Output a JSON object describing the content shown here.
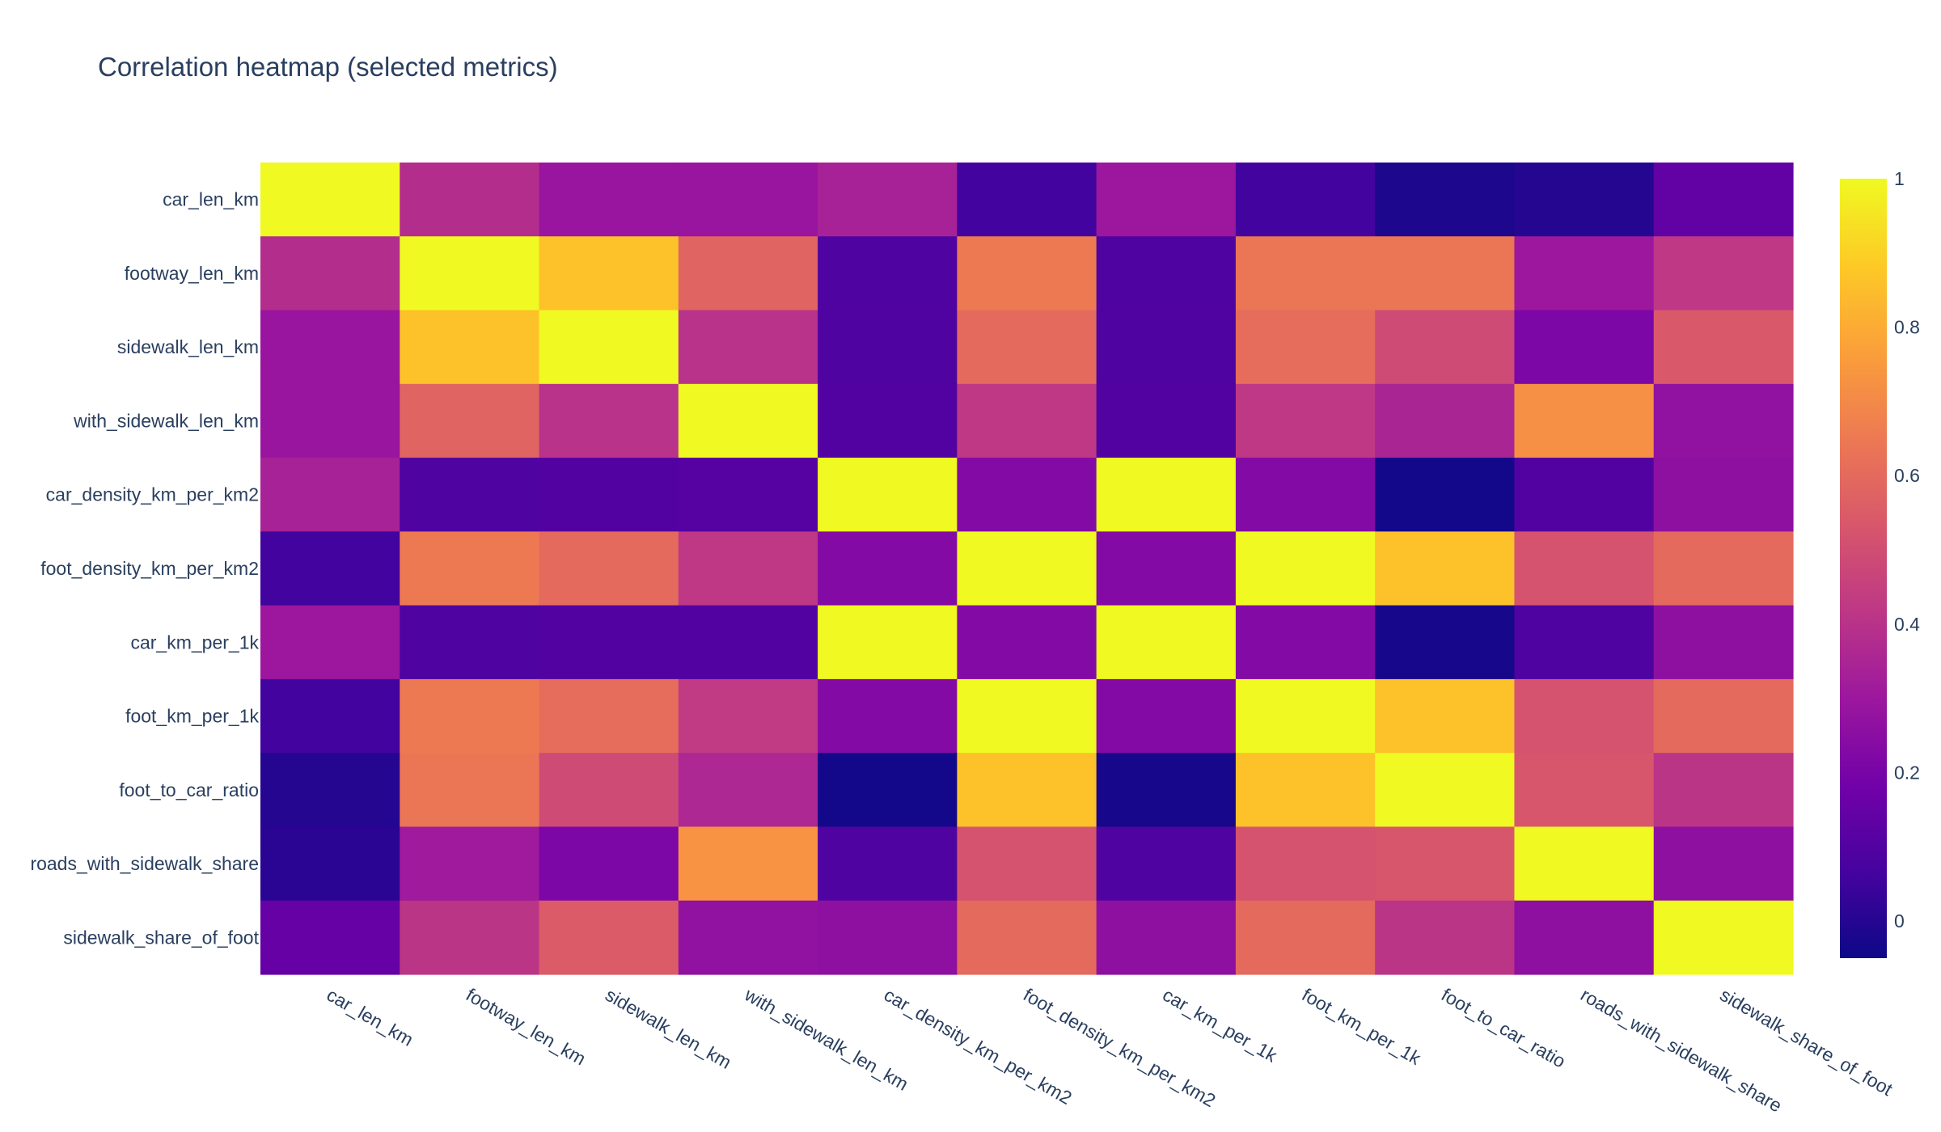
{
  "title": "Correlation heatmap (selected metrics)",
  "chart_data": {
    "type": "heatmap",
    "title": "Correlation heatmap (selected metrics)",
    "colorscale": "plasma",
    "zlim": [
      -0.05,
      1
    ],
    "colorbar_ticks": [
      "0",
      "0.2",
      "0.4",
      "0.6",
      "0.8",
      "1"
    ],
    "colorbar_tick_values": [
      0,
      0.2,
      0.4,
      0.6,
      0.8,
      1
    ],
    "x_labels": [
      "car_len_km",
      "footway_len_km",
      "sidewalk_len_km",
      "with_sidewalk_len_km",
      "car_density_km_per_km2",
      "foot_density_km_per_km2",
      "car_km_per_1k",
      "foot_km_per_1k",
      "foot_to_car_ratio",
      "roads_with_sidewalk_share",
      "sidewalk_share_of_foot"
    ],
    "y_labels": [
      "car_len_km",
      "footway_len_km",
      "sidewalk_len_km",
      "with_sidewalk_len_km",
      "car_density_km_per_km2",
      "foot_density_km_per_km2",
      "car_km_per_1k",
      "foot_km_per_1k",
      "foot_to_car_ratio",
      "roads_with_sidewalk_share",
      "sidewalk_share_of_foot"
    ],
    "z": [
      [
        1.0,
        0.38,
        0.29,
        0.29,
        0.34,
        0.06,
        0.3,
        0.06,
        -0.02,
        0.0,
        0.14
      ],
      [
        0.38,
        1.0,
        0.86,
        0.58,
        0.09,
        0.65,
        0.09,
        0.64,
        0.64,
        0.3,
        0.42
      ],
      [
        0.29,
        0.86,
        1.0,
        0.4,
        0.09,
        0.6,
        0.09,
        0.61,
        0.49,
        0.21,
        0.54
      ],
      [
        0.29,
        0.58,
        0.4,
        1.0,
        0.1,
        0.42,
        0.1,
        0.42,
        0.35,
        0.72,
        0.27
      ],
      [
        0.34,
        0.09,
        0.1,
        0.11,
        1.0,
        0.23,
        1.0,
        0.23,
        -0.04,
        0.1,
        0.26
      ],
      [
        0.06,
        0.65,
        0.6,
        0.42,
        0.23,
        1.0,
        0.23,
        1.0,
        0.86,
        0.52,
        0.6
      ],
      [
        0.3,
        0.09,
        0.1,
        0.1,
        1.0,
        0.23,
        1.0,
        0.23,
        -0.03,
        0.09,
        0.26
      ],
      [
        0.06,
        0.65,
        0.61,
        0.43,
        0.23,
        1.0,
        0.23,
        1.0,
        0.86,
        0.52,
        0.6
      ],
      [
        0.0,
        0.64,
        0.49,
        0.36,
        -0.04,
        0.86,
        -0.03,
        0.86,
        1.0,
        0.53,
        0.41
      ],
      [
        0.01,
        0.31,
        0.21,
        0.73,
        0.09,
        0.52,
        0.09,
        0.52,
        0.53,
        1.0,
        0.26
      ],
      [
        0.15,
        0.41,
        0.55,
        0.27,
        0.26,
        0.6,
        0.26,
        0.6,
        0.41,
        0.26,
        1.0
      ]
    ]
  }
}
